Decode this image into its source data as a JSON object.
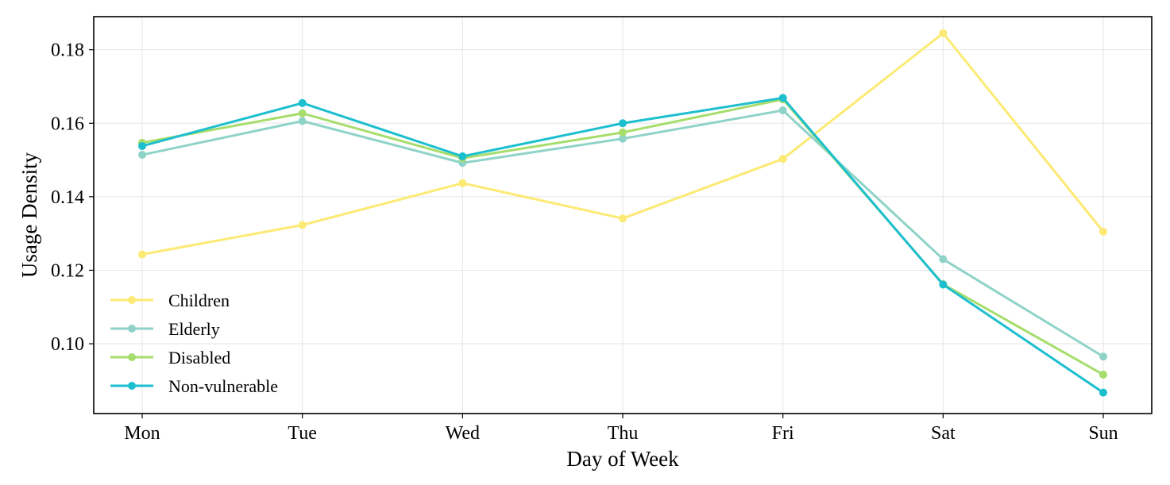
{
  "chart_data": {
    "type": "line",
    "title": "",
    "xlabel": "Day of Week",
    "ylabel": "Usage Density",
    "categories": [
      "Mon",
      "Tue",
      "Wed",
      "Thu",
      "Fri",
      "Sat",
      "Sun"
    ],
    "ylim": [
      0.081,
      0.189
    ],
    "yticks": [
      0.1,
      0.12,
      0.14,
      0.16,
      0.18
    ],
    "ytick_labels": [
      "0.10",
      "0.12",
      "0.14",
      "0.16",
      "0.18"
    ],
    "grid": true,
    "legend_position": "lower-left",
    "series": [
      {
        "name": "Children",
        "color": "#fcea74",
        "values": [
          0.1243,
          0.1323,
          0.1437,
          0.1341,
          0.1503,
          0.1845,
          0.1305
        ]
      },
      {
        "name": "Elderly",
        "color": "#8fd3c8",
        "values": [
          0.1514,
          0.1606,
          0.1492,
          0.1558,
          0.1635,
          0.123,
          0.0965
        ]
      },
      {
        "name": "Disabled",
        "color": "#a6dd6c",
        "values": [
          0.1547,
          0.1627,
          0.1505,
          0.1575,
          0.1665,
          0.1162,
          0.0916
        ]
      },
      {
        "name": "Non-vulnerable",
        "color": "#1dbfcf",
        "values": [
          0.1538,
          0.1655,
          0.151,
          0.16,
          0.1669,
          0.1161,
          0.0867
        ]
      }
    ]
  }
}
